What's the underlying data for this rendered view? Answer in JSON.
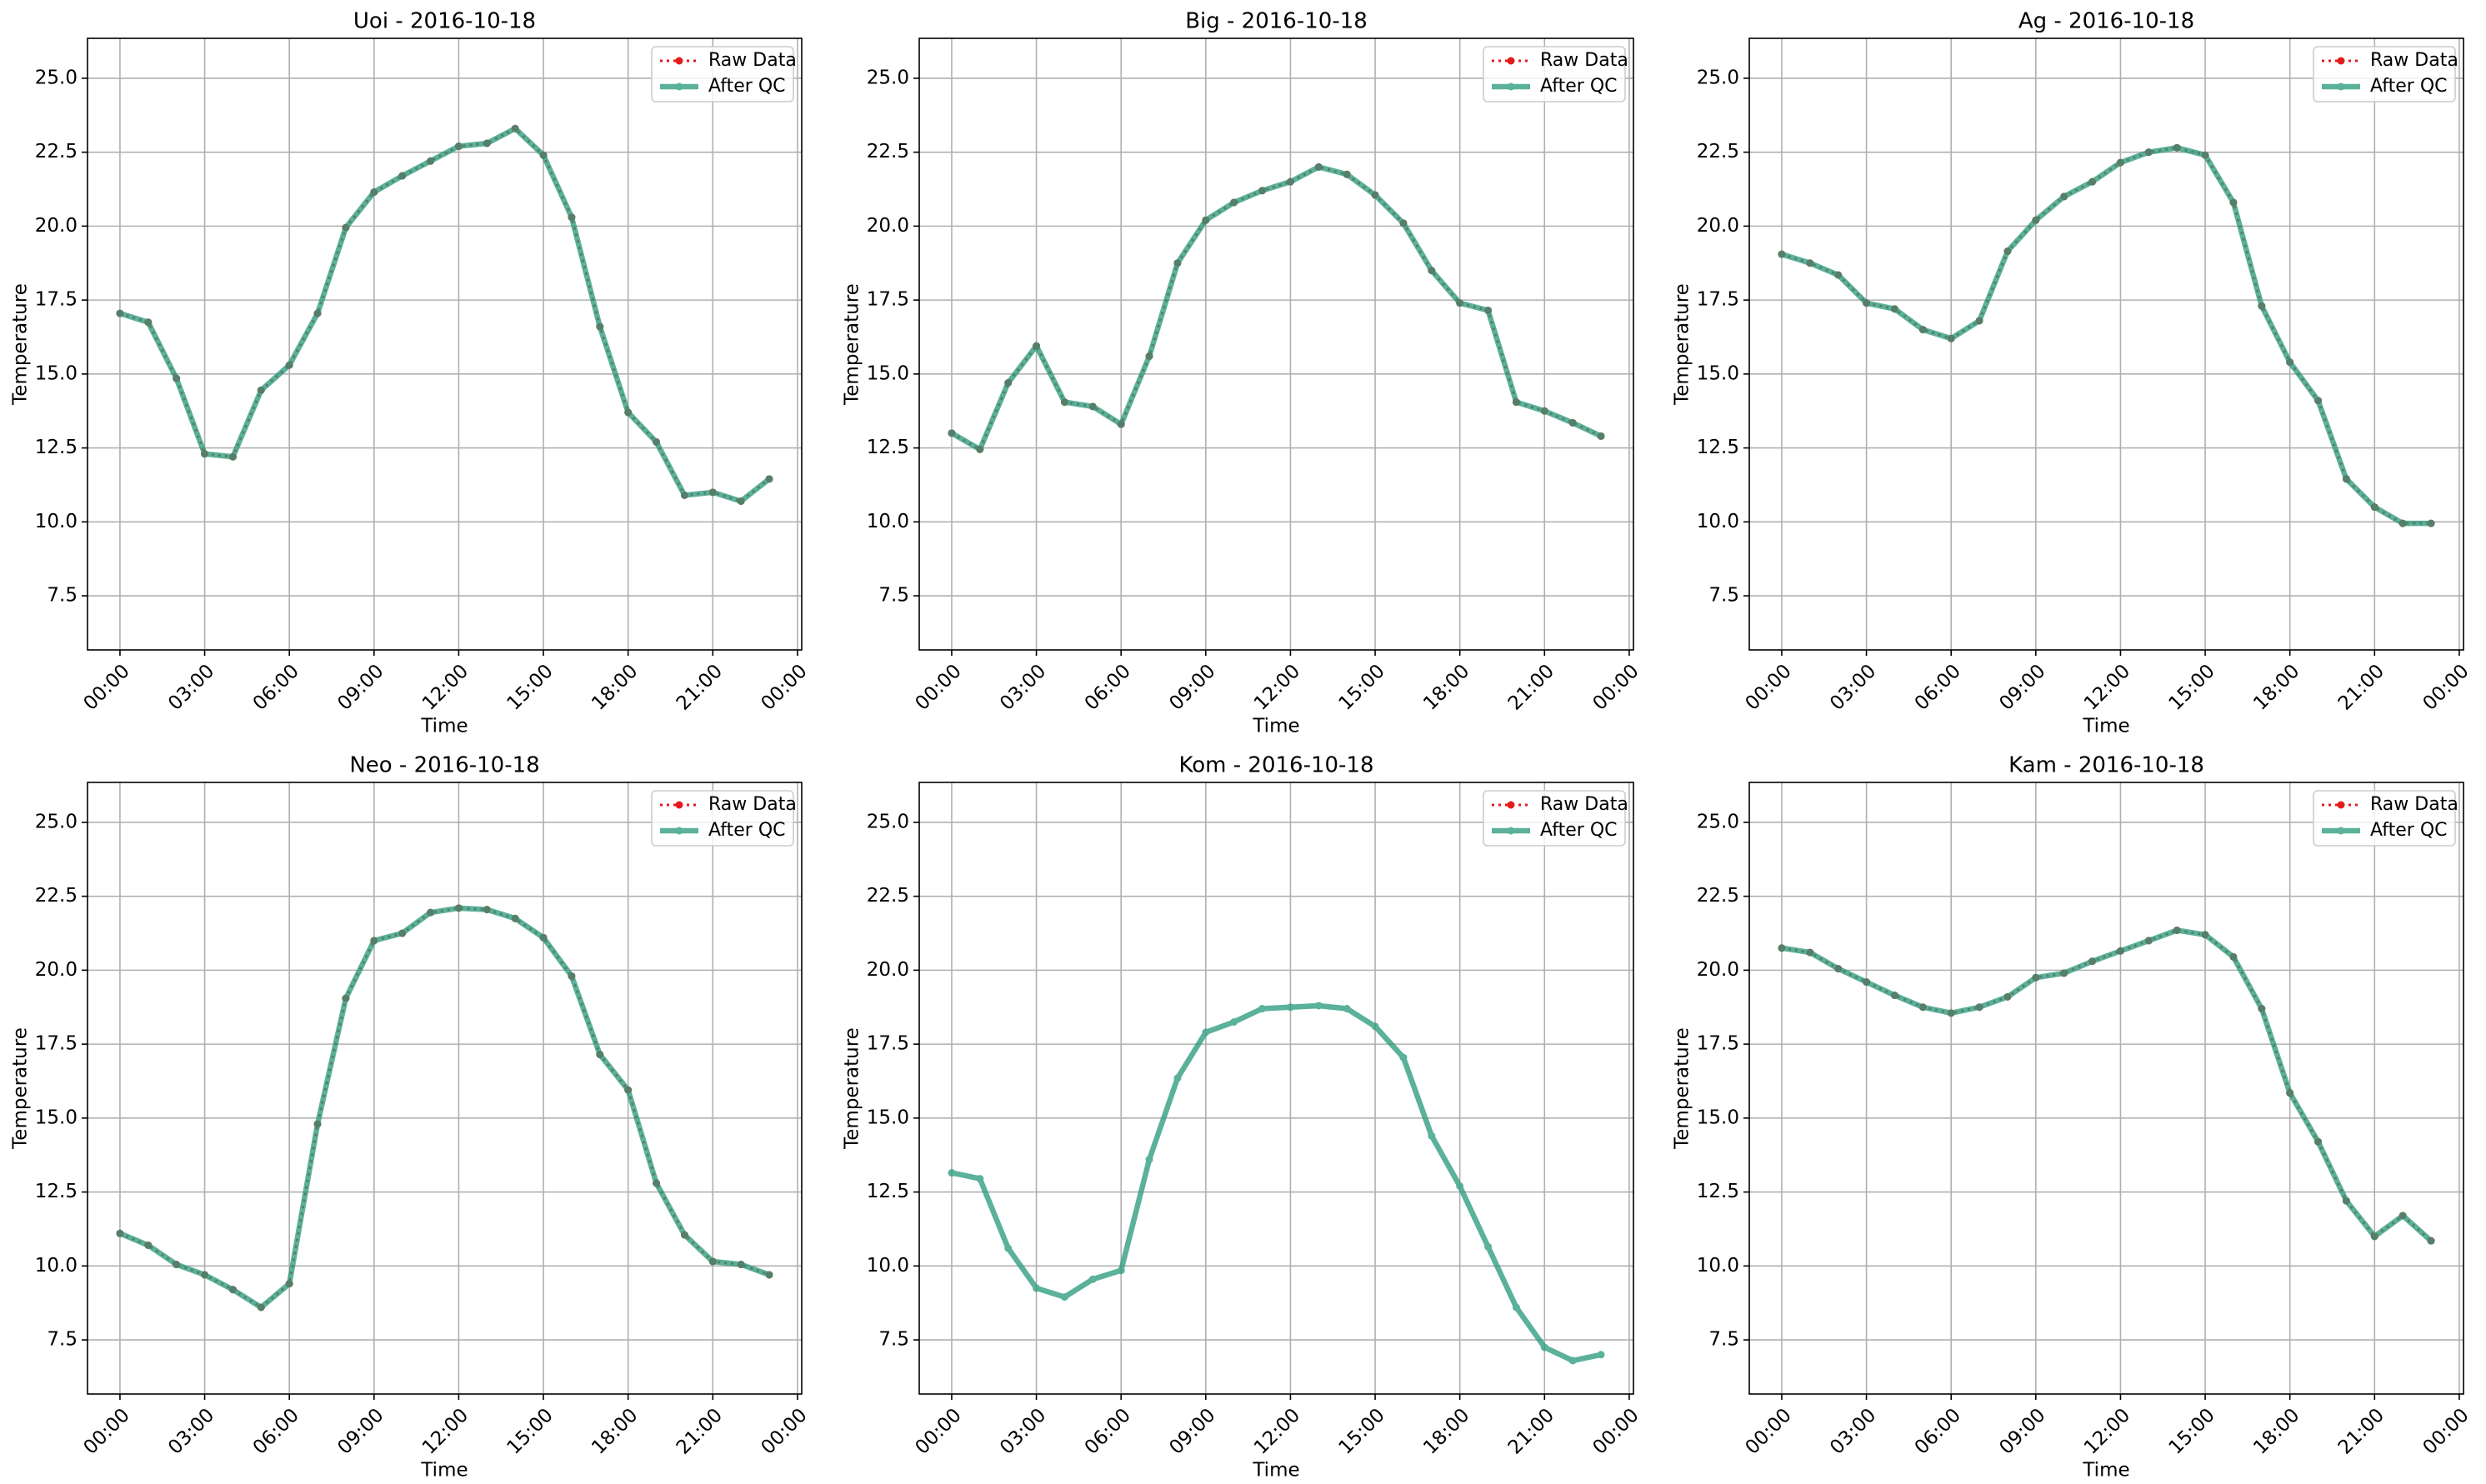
{
  "chart_data": [
    {
      "type": "line",
      "title": "Uoi - 2016-10-18",
      "xlabel": "Time",
      "ylabel": "Temperature",
      "x": [
        0,
        1,
        2,
        3,
        4,
        5,
        6,
        7,
        8,
        9,
        10,
        11,
        12,
        13,
        14,
        15,
        16,
        17,
        18,
        19,
        20,
        21,
        22,
        23
      ],
      "xlim": [
        -1.15,
        24.15
      ],
      "xticks": [
        {
          "value": 0,
          "label": "00:00"
        },
        {
          "value": 3,
          "label": "03:00"
        },
        {
          "value": 6,
          "label": "06:00"
        },
        {
          "value": 9,
          "label": "09:00"
        },
        {
          "value": 12,
          "label": "12:00"
        },
        {
          "value": 15,
          "label": "15:00"
        },
        {
          "value": 18,
          "label": "18:00"
        },
        {
          "value": 21,
          "label": "21:00"
        },
        {
          "value": 24,
          "label": "00:00"
        }
      ],
      "ylim": [
        5.67,
        26.35
      ],
      "yticks": [
        7.5,
        {
          "value": 10,
          "label": "10.0"
        },
        12.5,
        {
          "value": 15,
          "label": "15.0"
        },
        17.5,
        {
          "value": 20,
          "label": "20.0"
        },
        22.5,
        {
          "value": 25,
          "label": "25.0"
        }
      ],
      "grid": true,
      "legend": "upper right",
      "series": [
        {
          "name": "Raw Data",
          "color": "#e41a1c",
          "values": [
            17.05,
            16.75,
            14.85,
            12.3,
            12.2,
            14.45,
            15.3,
            17.05,
            19.95,
            21.15,
            21.7,
            22.2,
            22.7,
            22.8,
            23.3,
            22.4,
            20.3,
            16.6,
            13.7,
            12.7,
            10.9,
            11.0,
            10.7,
            11.45
          ]
        },
        {
          "name": "After QC",
          "color": "#2e9c7e",
          "values": [
            17.05,
            16.75,
            14.85,
            12.3,
            12.2,
            14.45,
            15.3,
            17.05,
            19.95,
            21.15,
            21.7,
            22.2,
            22.7,
            22.8,
            23.3,
            22.4,
            20.3,
            16.6,
            13.7,
            12.7,
            10.9,
            11.0,
            10.7,
            11.45
          ]
        }
      ]
    },
    {
      "type": "line",
      "title": "Big - 2016-10-18",
      "xlabel": "Time",
      "ylabel": "Temperature",
      "x": [
        0,
        1,
        2,
        3,
        4,
        5,
        6,
        7,
        8,
        9,
        10,
        11,
        12,
        13,
        14,
        15,
        16,
        17,
        18,
        19,
        20,
        21,
        22,
        23
      ],
      "xlim": [
        -1.15,
        24.15
      ],
      "xticks": [
        {
          "value": 0,
          "label": "00:00"
        },
        {
          "value": 3,
          "label": "03:00"
        },
        {
          "value": 6,
          "label": "06:00"
        },
        {
          "value": 9,
          "label": "09:00"
        },
        {
          "value": 12,
          "label": "12:00"
        },
        {
          "value": 15,
          "label": "15:00"
        },
        {
          "value": 18,
          "label": "18:00"
        },
        {
          "value": 21,
          "label": "21:00"
        },
        {
          "value": 24,
          "label": "00:00"
        }
      ],
      "ylim": [
        5.67,
        26.35
      ],
      "yticks": [
        7.5,
        {
          "value": 10,
          "label": "10.0"
        },
        12.5,
        {
          "value": 15,
          "label": "15.0"
        },
        17.5,
        {
          "value": 20,
          "label": "20.0"
        },
        22.5,
        {
          "value": 25,
          "label": "25.0"
        }
      ],
      "grid": true,
      "legend": "upper right",
      "series": [
        {
          "name": "Raw Data",
          "color": "#e41a1c",
          "values": [
            13.0,
            12.45,
            14.7,
            15.95,
            14.05,
            13.9,
            13.3,
            15.6,
            18.75,
            20.2,
            20.8,
            21.2,
            21.5,
            22.0,
            21.75,
            21.05,
            20.1,
            18.5,
            17.4,
            17.15,
            14.05,
            13.75,
            13.35,
            12.9
          ]
        },
        {
          "name": "After QC",
          "color": "#2e9c7e",
          "values": [
            13.0,
            12.45,
            14.7,
            15.95,
            14.05,
            13.9,
            13.3,
            15.6,
            18.75,
            20.2,
            20.8,
            21.2,
            21.5,
            22.0,
            21.75,
            21.05,
            20.1,
            18.5,
            17.4,
            17.15,
            14.05,
            13.75,
            13.35,
            12.9
          ]
        }
      ]
    },
    {
      "type": "line",
      "title": "Ag - 2016-10-18",
      "xlabel": "Time",
      "ylabel": "Temperature",
      "x": [
        0,
        1,
        2,
        3,
        4,
        5,
        6,
        7,
        8,
        9,
        10,
        11,
        12,
        13,
        14,
        15,
        16,
        17,
        18,
        19,
        20,
        21,
        22,
        23
      ],
      "xlim": [
        -1.15,
        24.15
      ],
      "xticks": [
        {
          "value": 0,
          "label": "00:00"
        },
        {
          "value": 3,
          "label": "03:00"
        },
        {
          "value": 6,
          "label": "06:00"
        },
        {
          "value": 9,
          "label": "09:00"
        },
        {
          "value": 12,
          "label": "12:00"
        },
        {
          "value": 15,
          "label": "15:00"
        },
        {
          "value": 18,
          "label": "18:00"
        },
        {
          "value": 21,
          "label": "21:00"
        },
        {
          "value": 24,
          "label": "00:00"
        }
      ],
      "ylim": [
        5.67,
        26.35
      ],
      "yticks": [
        7.5,
        {
          "value": 10,
          "label": "10.0"
        },
        12.5,
        {
          "value": 15,
          "label": "15.0"
        },
        17.5,
        {
          "value": 20,
          "label": "20.0"
        },
        22.5,
        {
          "value": 25,
          "label": "25.0"
        }
      ],
      "grid": true,
      "legend": "upper right",
      "series": [
        {
          "name": "Raw Data",
          "color": "#e41a1c",
          "values": [
            19.05,
            18.75,
            18.35,
            17.4,
            17.2,
            16.5,
            16.2,
            16.8,
            19.15,
            20.2,
            21.0,
            21.5,
            22.15,
            22.5,
            22.65,
            22.4,
            20.8,
            17.3,
            15.4,
            14.1,
            11.45,
            10.5,
            9.95,
            9.95
          ]
        },
        {
          "name": "After QC",
          "color": "#2e9c7e",
          "values": [
            19.05,
            18.75,
            18.35,
            17.4,
            17.2,
            16.5,
            16.2,
            16.8,
            19.15,
            20.2,
            21.0,
            21.5,
            22.15,
            22.5,
            22.65,
            22.4,
            20.8,
            17.3,
            15.4,
            14.1,
            11.45,
            10.5,
            9.95,
            9.95
          ]
        }
      ]
    },
    {
      "type": "line",
      "title": "Neo - 2016-10-18",
      "xlabel": "Time",
      "ylabel": "Temperature",
      "x": [
        0,
        1,
        2,
        3,
        4,
        5,
        6,
        7,
        8,
        9,
        10,
        11,
        12,
        13,
        14,
        15,
        16,
        17,
        18,
        19,
        20,
        21,
        22,
        23
      ],
      "xlim": [
        -1.15,
        24.15
      ],
      "xticks": [
        {
          "value": 0,
          "label": "00:00"
        },
        {
          "value": 3,
          "label": "03:00"
        },
        {
          "value": 6,
          "label": "06:00"
        },
        {
          "value": 9,
          "label": "09:00"
        },
        {
          "value": 12,
          "label": "12:00"
        },
        {
          "value": 15,
          "label": "15:00"
        },
        {
          "value": 18,
          "label": "18:00"
        },
        {
          "value": 21,
          "label": "21:00"
        },
        {
          "value": 24,
          "label": "00:00"
        }
      ],
      "ylim": [
        5.67,
        26.35
      ],
      "yticks": [
        7.5,
        {
          "value": 10,
          "label": "10.0"
        },
        12.5,
        {
          "value": 15,
          "label": "15.0"
        },
        17.5,
        {
          "value": 20,
          "label": "20.0"
        },
        22.5,
        {
          "value": 25,
          "label": "25.0"
        }
      ],
      "grid": true,
      "legend": "upper right",
      "series": [
        {
          "name": "Raw Data",
          "color": "#e41a1c",
          "values": [
            11.1,
            10.7,
            10.05,
            9.7,
            9.2,
            8.6,
            9.4,
            14.8,
            19.05,
            21.0,
            21.25,
            21.95,
            22.1,
            22.05,
            21.75,
            21.1,
            19.8,
            17.15,
            15.95,
            12.8,
            11.05,
            10.15,
            10.05,
            9.7
          ]
        },
        {
          "name": "After QC",
          "color": "#2e9c7e",
          "values": [
            11.1,
            10.7,
            10.05,
            9.7,
            9.2,
            8.6,
            9.4,
            14.8,
            19.05,
            21.0,
            21.25,
            21.95,
            22.1,
            22.05,
            21.75,
            21.1,
            19.8,
            17.15,
            15.95,
            12.8,
            11.05,
            10.15,
            10.05,
            9.7
          ]
        }
      ]
    },
    {
      "type": "line",
      "title": "Kom - 2016-10-18",
      "xlabel": "Time",
      "ylabel": "Temperature",
      "x": [
        0,
        1,
        2,
        3,
        4,
        5,
        6,
        7,
        8,
        9,
        10,
        11,
        12,
        13,
        14,
        15,
        16,
        17,
        18,
        19,
        20,
        21,
        22,
        23
      ],
      "xlim": [
        -1.15,
        24.15
      ],
      "xticks": [
        {
          "value": 0,
          "label": "00:00"
        },
        {
          "value": 3,
          "label": "03:00"
        },
        {
          "value": 6,
          "label": "06:00"
        },
        {
          "value": 9,
          "label": "09:00"
        },
        {
          "value": 12,
          "label": "12:00"
        },
        {
          "value": 15,
          "label": "15:00"
        },
        {
          "value": 18,
          "label": "18:00"
        },
        {
          "value": 21,
          "label": "21:00"
        },
        {
          "value": 24,
          "label": "00:00"
        }
      ],
      "ylim": [
        5.67,
        26.35
      ],
      "yticks": [
        7.5,
        {
          "value": 10,
          "label": "10.0"
        },
        12.5,
        {
          "value": 15,
          "label": "15.0"
        },
        17.5,
        {
          "value": 20,
          "label": "20.0"
        },
        22.5,
        {
          "value": 25,
          "label": "25.0"
        }
      ],
      "grid": true,
      "legend": "upper right",
      "series": [
        {
          "name": "Raw Data",
          "color": "#e41a1c",
          "values": [
            null,
            null,
            null,
            null,
            null,
            null,
            null,
            null,
            null,
            null,
            null,
            null,
            null,
            null,
            null,
            null,
            null,
            null,
            null,
            null,
            null,
            null,
            null,
            null
          ]
        },
        {
          "name": "After QC",
          "color": "#2e9c7e",
          "values": [
            13.15,
            12.95,
            10.6,
            9.25,
            8.95,
            9.55,
            9.85,
            13.6,
            16.35,
            17.9,
            18.25,
            18.7,
            18.75,
            18.8,
            18.7,
            18.1,
            17.05,
            14.4,
            12.7,
            10.65,
            8.6,
            7.25,
            6.8,
            7.0
          ]
        }
      ]
    },
    {
      "type": "line",
      "title": "Kam - 2016-10-18",
      "xlabel": "Time",
      "ylabel": "Temperature",
      "x": [
        0,
        1,
        2,
        3,
        4,
        5,
        6,
        7,
        8,
        9,
        10,
        11,
        12,
        13,
        14,
        15,
        16,
        17,
        18,
        19,
        20,
        21,
        22,
        23
      ],
      "xlim": [
        -1.15,
        24.15
      ],
      "xticks": [
        {
          "value": 0,
          "label": "00:00"
        },
        {
          "value": 3,
          "label": "03:00"
        },
        {
          "value": 6,
          "label": "06:00"
        },
        {
          "value": 9,
          "label": "09:00"
        },
        {
          "value": 12,
          "label": "12:00"
        },
        {
          "value": 15,
          "label": "15:00"
        },
        {
          "value": 18,
          "label": "18:00"
        },
        {
          "value": 21,
          "label": "21:00"
        },
        {
          "value": 24,
          "label": "00:00"
        }
      ],
      "ylim": [
        5.67,
        26.35
      ],
      "yticks": [
        7.5,
        {
          "value": 10,
          "label": "10.0"
        },
        12.5,
        {
          "value": 15,
          "label": "15.0"
        },
        17.5,
        {
          "value": 20,
          "label": "20.0"
        },
        22.5,
        {
          "value": 25,
          "label": "25.0"
        }
      ],
      "grid": true,
      "legend": "upper right",
      "series": [
        {
          "name": "Raw Data",
          "color": "#e41a1c",
          "values": [
            20.75,
            20.6,
            20.05,
            19.6,
            19.15,
            18.75,
            18.55,
            18.75,
            19.1,
            19.75,
            19.9,
            20.3,
            20.65,
            21.0,
            21.35,
            21.2,
            20.45,
            18.7,
            15.85,
            14.2,
            12.2,
            11.0,
            11.7,
            10.85
          ]
        },
        {
          "name": "After QC",
          "color": "#2e9c7e",
          "values": [
            20.75,
            20.6,
            20.05,
            19.6,
            19.15,
            18.75,
            18.55,
            18.75,
            19.1,
            19.75,
            19.9,
            20.3,
            20.65,
            21.0,
            21.35,
            21.2,
            20.45,
            18.7,
            15.85,
            14.2,
            12.2,
            11.0,
            11.7,
            10.85
          ]
        }
      ]
    }
  ]
}
